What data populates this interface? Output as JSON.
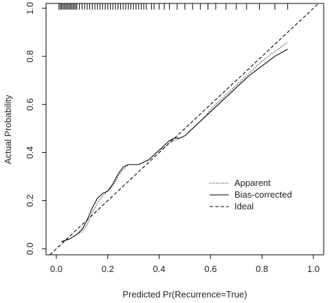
{
  "chart_data": {
    "type": "line",
    "title": "",
    "xlabel": "Predicted Pr(Recurrence=True)",
    "ylabel": "Actual Probability",
    "xlim": [
      -0.04,
      1.04
    ],
    "ylim": [
      -0.025,
      1.02
    ],
    "x_ticks": [
      "0.0",
      "0.2",
      "0.4",
      "0.6",
      "0.8",
      "1.0"
    ],
    "y_ticks": [
      "0.0",
      "0.2",
      "0.4",
      "0.6",
      "0.8",
      "1.0"
    ],
    "x_tick_values": [
      0,
      0.2,
      0.4,
      0.6,
      0.8,
      1.0
    ],
    "y_tick_values": [
      0,
      0.2,
      0.4,
      0.6,
      0.8,
      1.0
    ],
    "grid": false,
    "legend_position": "bottom-right",
    "series": [
      {
        "name": "Apparent",
        "style": "dotted",
        "x": [
          0.02,
          0.05,
          0.08,
          0.1,
          0.12,
          0.14,
          0.16,
          0.18,
          0.2,
          0.22,
          0.24,
          0.26,
          0.28,
          0.3,
          0.32,
          0.34,
          0.36,
          0.38,
          0.4,
          0.42,
          0.44,
          0.46,
          0.48,
          0.5,
          0.52,
          0.55,
          0.58,
          0.6,
          0.65,
          0.7,
          0.75,
          0.8,
          0.85,
          0.9
        ],
        "y": [
          0.03,
          0.04,
          0.06,
          0.07,
          0.1,
          0.15,
          0.19,
          0.22,
          0.24,
          0.26,
          0.3,
          0.33,
          0.35,
          0.35,
          0.35,
          0.36,
          0.37,
          0.39,
          0.41,
          0.42,
          0.44,
          0.45,
          0.46,
          0.47,
          0.49,
          0.52,
          0.55,
          0.58,
          0.63,
          0.68,
          0.73,
          0.78,
          0.82,
          0.86
        ]
      },
      {
        "name": "Bias-corrected",
        "style": "solid",
        "x": [
          0.02,
          0.05,
          0.08,
          0.1,
          0.12,
          0.14,
          0.16,
          0.18,
          0.2,
          0.22,
          0.24,
          0.26,
          0.28,
          0.3,
          0.32,
          0.34,
          0.36,
          0.38,
          0.4,
          0.42,
          0.44,
          0.46,
          0.48,
          0.5,
          0.52,
          0.55,
          0.58,
          0.6,
          0.65,
          0.7,
          0.75,
          0.8,
          0.85,
          0.9
        ],
        "y": [
          0.03,
          0.04,
          0.06,
          0.08,
          0.12,
          0.17,
          0.21,
          0.23,
          0.24,
          0.27,
          0.31,
          0.34,
          0.35,
          0.35,
          0.35,
          0.36,
          0.37,
          0.39,
          0.41,
          0.43,
          0.45,
          0.46,
          0.46,
          0.47,
          0.49,
          0.52,
          0.55,
          0.57,
          0.62,
          0.67,
          0.72,
          0.76,
          0.8,
          0.83
        ]
      },
      {
        "name": "Ideal",
        "style": "dashed",
        "x": [
          -0.04,
          1.04
        ],
        "y": [
          -0.04,
          1.04
        ]
      }
    ],
    "rug_x": [
      0.01,
      0.015,
      0.02,
      0.025,
      0.03,
      0.035,
      0.04,
      0.045,
      0.05,
      0.055,
      0.06,
      0.065,
      0.07,
      0.075,
      0.08,
      0.09,
      0.1,
      0.11,
      0.12,
      0.13,
      0.14,
      0.15,
      0.16,
      0.17,
      0.18,
      0.19,
      0.2,
      0.21,
      0.22,
      0.23,
      0.24,
      0.25,
      0.26,
      0.27,
      0.28,
      0.29,
      0.3,
      0.31,
      0.32,
      0.33,
      0.34,
      0.35,
      0.37,
      0.38,
      0.4,
      0.42,
      0.44,
      0.47,
      0.5,
      0.53,
      0.56,
      0.59,
      0.62,
      0.66,
      0.7,
      0.74,
      0.79,
      0.85,
      0.9
    ],
    "colors": {
      "line": "#000000",
      "axis": "#000000"
    }
  }
}
